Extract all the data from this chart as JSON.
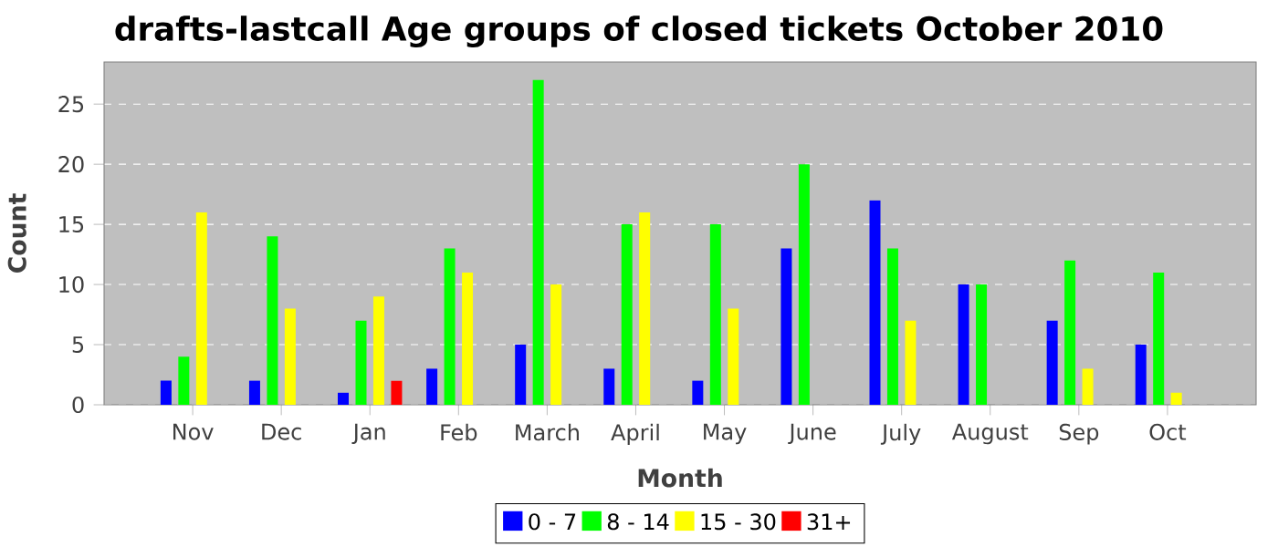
{
  "chart_data": {
    "type": "bar",
    "title": "drafts-lastcall Age groups of closed tickets October 2010",
    "xlabel": "Month",
    "ylabel": "Count",
    "categories": [
      "Nov",
      "Dec",
      "Jan",
      "Feb",
      "March",
      "April",
      "May",
      "June",
      "July",
      "August",
      "Sep",
      "Oct"
    ],
    "series": [
      {
        "name": "0 - 7",
        "color": "#0000ff",
        "values": [
          2,
          2,
          1,
          3,
          5,
          3,
          2,
          13,
          17,
          10,
          7,
          5
        ]
      },
      {
        "name": "8 - 14",
        "color": "#00ff00",
        "values": [
          4,
          14,
          7,
          13,
          27,
          15,
          15,
          20,
          13,
          10,
          12,
          11
        ]
      },
      {
        "name": "15 - 30",
        "color": "#ffff00",
        "values": [
          16,
          8,
          9,
          11,
          10,
          16,
          8,
          0,
          7,
          0,
          3,
          1
        ]
      },
      {
        "name": "31+",
        "color": "#ff0000",
        "values": [
          0,
          0,
          2,
          0,
          0,
          0,
          0,
          0,
          0,
          0,
          0,
          0
        ]
      }
    ],
    "ylim": [
      0,
      28.5
    ],
    "yticks": [
      0,
      5,
      10,
      15,
      20,
      25
    ],
    "grid": "y",
    "legend": "bottom"
  }
}
